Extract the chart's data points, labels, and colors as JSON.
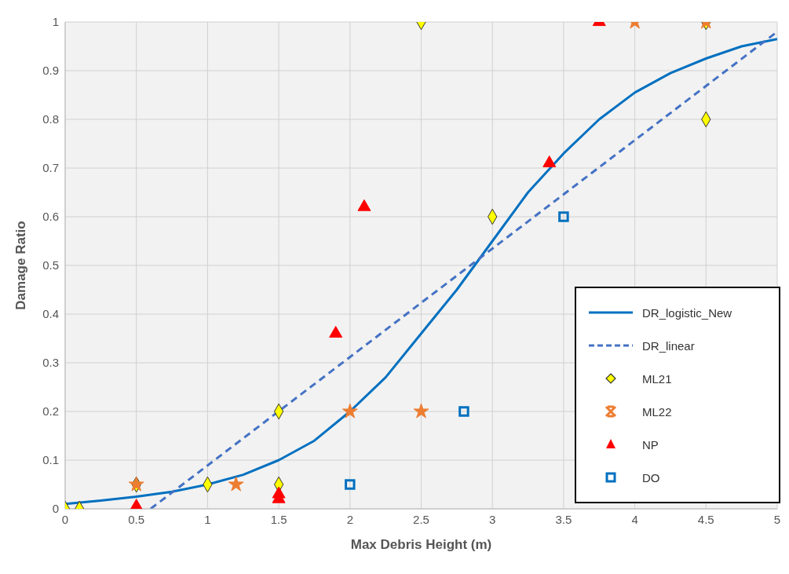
{
  "chart_data": {
    "type": "scatter",
    "xlabel": "Max Debris Height (m)",
    "ylabel": "Damage Ratio",
    "xlim": [
      0,
      5
    ],
    "xticks": [
      0,
      0.5,
      1,
      1.5,
      2,
      2.5,
      3,
      3.5,
      4,
      4.5,
      5
    ],
    "ylim": [
      0,
      1
    ],
    "yticks": [
      0,
      0.1,
      0.2,
      0.3,
      0.4,
      0.5,
      0.6,
      0.7,
      0.8,
      0.9,
      1
    ],
    "grid": true,
    "legend": "bottom right",
    "series": [
      {
        "name": "DR_logistic_New",
        "type": "line",
        "color": "#0070c0",
        "marker": "none",
        "line_style": "solid",
        "x": [
          0,
          0.25,
          0.5,
          0.75,
          1,
          1.25,
          1.5,
          1.75,
          2,
          2.25,
          2.5,
          2.75,
          3,
          3.25,
          3.5,
          3.75,
          4,
          4.25,
          4.5,
          4.75,
          5
        ],
        "values": [
          0.01,
          0.017,
          0.025,
          0.035,
          0.05,
          0.07,
          0.1,
          0.14,
          0.2,
          0.27,
          0.36,
          0.45,
          0.55,
          0.65,
          0.73,
          0.8,
          0.855,
          0.895,
          0.925,
          0.95,
          0.965
        ]
      },
      {
        "name": "DR_linear",
        "type": "line",
        "color": "#4472c4",
        "marker": "none",
        "line_style": "dashed",
        "x": [
          0.6,
          5
        ],
        "values": [
          0,
          0.98
        ]
      },
      {
        "name": "ML21",
        "type": "scatter",
        "color": "#ffff00",
        "marker": "diamond",
        "x": [
          0,
          0.1,
          0.5,
          1,
          1.5,
          1.5,
          2.5,
          3,
          4.5,
          4.5
        ],
        "values": [
          0,
          0,
          0.05,
          0.05,
          0.2,
          0.05,
          1,
          0.6,
          0.8,
          1
        ]
      },
      {
        "name": "ML22",
        "type": "scatter",
        "color": "#ed7d31",
        "marker": "star",
        "x": [
          0.5,
          1.2,
          2,
          2.5,
          4,
          4.5
        ],
        "values": [
          0.05,
          0.05,
          0.2,
          0.2,
          1,
          1
        ]
      },
      {
        "name": "NP",
        "type": "scatter",
        "color": "#ff0000",
        "marker": "triangle",
        "x": [
          0.5,
          1.5,
          1.5,
          1.9,
          2.1,
          3.4,
          3.75
        ],
        "values": [
          0.005,
          0.02,
          0.03,
          0.36,
          0.62,
          0.71,
          1
        ]
      },
      {
        "name": "DO",
        "type": "scatter",
        "color": "#0070c0",
        "marker": "square",
        "x": [
          2,
          2.8,
          3.5
        ],
        "values": [
          0.05,
          0.2,
          0.6
        ]
      }
    ]
  }
}
